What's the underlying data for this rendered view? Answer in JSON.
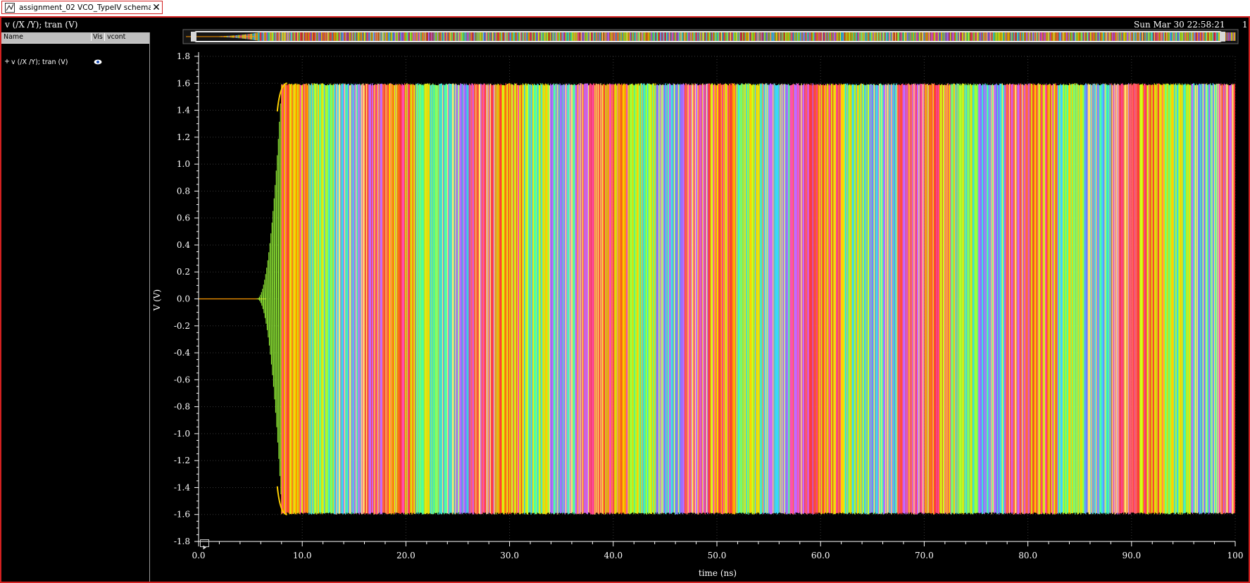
{
  "tab": {
    "label": "assignment_02 VCO_TypeIV schema...",
    "close": "✕",
    "icon": "waveform-window-icon"
  },
  "window": {
    "title": "v (/X /Y); tran (V)",
    "datetime": "Sun Mar 30 22:58:21",
    "subwindow_number": "1"
  },
  "legend": {
    "columns": {
      "name": "Name",
      "vis": "Vis",
      "vcont": "vcont"
    },
    "rows": [
      {
        "expander": "+",
        "name": "v (/X /Y); tran (V)",
        "visible_icon": "eye-icon"
      }
    ]
  },
  "chart_data": {
    "type": "line",
    "title": "",
    "xlabel": "time (ns)",
    "ylabel": "V (V)",
    "xlim": [
      0,
      100
    ],
    "ylim": [
      -1.8,
      1.8
    ],
    "x_ticks": [
      "0.0",
      "10.0",
      "20.0",
      "30.0",
      "40.0",
      "50.0",
      "60.0",
      "70.0",
      "80.0",
      "90.0",
      "100"
    ],
    "y_ticks": [
      "1.8",
      "1.6",
      "1.4",
      "1.2",
      "1.0",
      "0.8",
      "0.6",
      "0.4",
      "0.2",
      "0.0",
      "-0.2",
      "-0.4",
      "-0.6",
      "-0.8",
      "-1.0",
      "-1.2",
      "-1.4",
      "-1.6",
      "-1.8"
    ],
    "grid": true,
    "series_count_description": "parametric sweep over vcont (many overlapping traces)",
    "waveform": {
      "startup_time_ns": 6.5,
      "settle_time_ns": 8.0,
      "amplitude_v": 1.6,
      "oscillation": true
    },
    "colors": [
      "#ff3b3b",
      "#ff4fb0",
      "#ff9900",
      "#ffd000",
      "#d4ff1a",
      "#9dff3a",
      "#4dffa3",
      "#3cd4ff",
      "#7d7dff",
      "#c46aff",
      "#ffe36e",
      "#ff6a3d"
    ]
  },
  "colors": {
    "background": "#000000",
    "window_border": "#d22020",
    "legend_header": "#bfbfbf",
    "axis": "#ffffff",
    "grid": "#3a3a3a"
  },
  "toolbar": {
    "play_icon": "play-icon"
  }
}
